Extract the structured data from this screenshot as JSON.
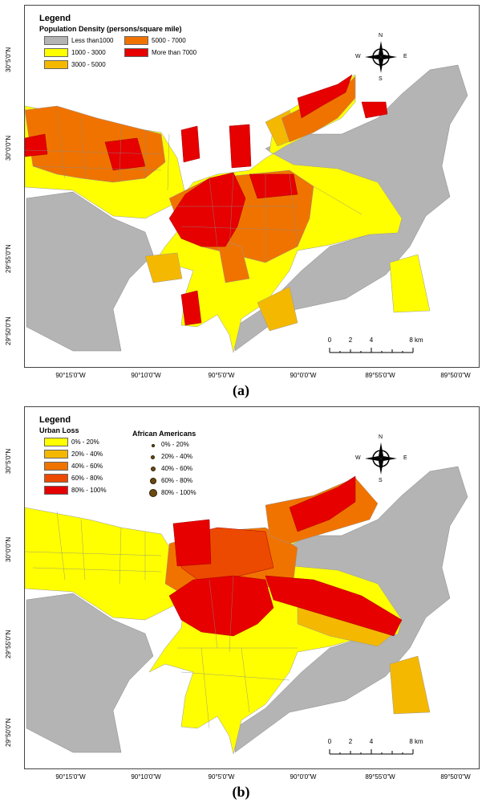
{
  "panel_a": {
    "caption": "(a)",
    "legend": {
      "title": "Legend",
      "subtitle": "Population Density (persons/square mile)",
      "items": [
        {
          "label": "Less than1000",
          "color": "#b4b4b4"
        },
        {
          "label": "1000 - 3000",
          "color": "#ffff00"
        },
        {
          "label": "3000 - 5000",
          "color": "#f5b800"
        },
        {
          "label": "5000 - 7000",
          "color": "#f07300"
        },
        {
          "label": "More than 7000",
          "color": "#e60000"
        }
      ]
    }
  },
  "panel_b": {
    "caption": "(b)",
    "legend": {
      "title": "Legend",
      "subtitle": "Urban Loss",
      "items": [
        {
          "label": "0% - 20%",
          "color": "#ffff00"
        },
        {
          "label": "20% - 40%",
          "color": "#f5b800"
        },
        {
          "label": "40% - 60%",
          "color": "#f07300"
        },
        {
          "label": "60% - 80%",
          "color": "#ec4a00"
        },
        {
          "label": "80% - 100%",
          "color": "#e60000"
        }
      ],
      "dots_title": "African Americans",
      "dots": [
        {
          "label": "0% - 20%",
          "size": 4
        },
        {
          "label": "20% - 40%",
          "size": 5
        },
        {
          "label": "40% - 60%",
          "size": 6
        },
        {
          "label": "60% - 80%",
          "size": 8
        },
        {
          "label": "80% - 100%",
          "size": 10
        }
      ]
    }
  },
  "compass": {
    "n": "N",
    "s": "S",
    "e": "E",
    "w": "W"
  },
  "scale_bar": {
    "ticks": [
      "0",
      "2",
      "4",
      "8 km"
    ]
  },
  "x_ticks": [
    "90°15'0\"W",
    "90°10'0\"W",
    "90°5'0\"W",
    "90°0'0\"W",
    "89°55'0\"W",
    "89°50'0\"W"
  ],
  "y_ticks": [
    "30°5'0\"N",
    "30°0'0\"N",
    "29°55'0\"N",
    "29°50'0\"N"
  ]
}
